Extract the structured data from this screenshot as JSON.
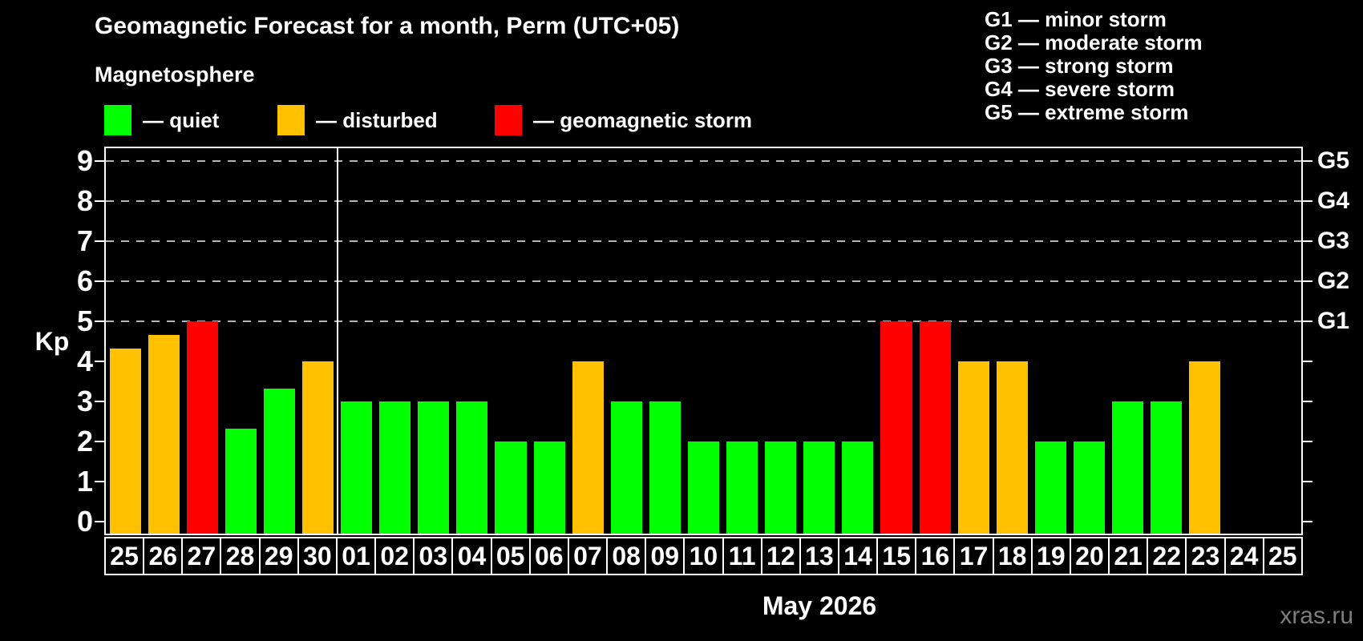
{
  "title": "Geomagnetic Forecast for a month, Perm (UTC+05)",
  "subtitle": "Magnetosphere",
  "legend": {
    "items": [
      {
        "key": "quiet",
        "label": "— quiet",
        "color": "#00ff00"
      },
      {
        "key": "disturbed",
        "label": "— disturbed",
        "color": "#ffc000"
      },
      {
        "key": "storm",
        "label": "— geomagnetic storm",
        "color": "#ff0000"
      }
    ]
  },
  "storm_legend": {
    "lines": [
      "G1 — minor storm",
      "G2 — moderate storm",
      "G3 — strong storm",
      "G4 — severe storm",
      "G5 — extreme storm"
    ]
  },
  "watermark": "xras.ru",
  "chart_data": {
    "type": "bar",
    "title": "Geomagnetic Forecast for a month, Perm (UTC+05)",
    "ylabel": "Kp",
    "xlabel": "May 2026",
    "ylim": [
      0,
      9
    ],
    "yticks": [
      0,
      1,
      2,
      3,
      4,
      5,
      6,
      7,
      8,
      9
    ],
    "gridlines_at": [
      5,
      6,
      7,
      8,
      9
    ],
    "grid": "dashed, storm levels only",
    "right_axis_labels": [
      {
        "value": 5,
        "label": "G1"
      },
      {
        "value": 6,
        "label": "G2"
      },
      {
        "value": 7,
        "label": "G3"
      },
      {
        "value": 8,
        "label": "G4"
      },
      {
        "value": 9,
        "label": "G5"
      }
    ],
    "month_separator_after_index": 5,
    "categories": [
      "25",
      "26",
      "27",
      "28",
      "29",
      "30",
      "01",
      "02",
      "03",
      "04",
      "05",
      "06",
      "07",
      "08",
      "09",
      "10",
      "11",
      "12",
      "13",
      "14",
      "15",
      "16",
      "17",
      "18",
      "19",
      "20",
      "21",
      "22",
      "23",
      "24",
      "25"
    ],
    "values": [
      4.33,
      4.67,
      5,
      2.33,
      3.33,
      4,
      3,
      3,
      3,
      3,
      2,
      2,
      4,
      3,
      3,
      2,
      2,
      2,
      2,
      2,
      5,
      5,
      4,
      4,
      2,
      2,
      3,
      3,
      4,
      null,
      null
    ],
    "statuses": [
      "disturbed",
      "disturbed",
      "storm",
      "quiet",
      "quiet",
      "disturbed",
      "quiet",
      "quiet",
      "quiet",
      "quiet",
      "quiet",
      "quiet",
      "disturbed",
      "quiet",
      "quiet",
      "quiet",
      "quiet",
      "quiet",
      "quiet",
      "quiet",
      "storm",
      "storm",
      "disturbed",
      "disturbed",
      "quiet",
      "quiet",
      "quiet",
      "quiet",
      "disturbed",
      null,
      null
    ],
    "colors": {
      "quiet": "#00ff00",
      "disturbed": "#ffc000",
      "storm": "#ff0000"
    },
    "background": "#000000",
    "axis_color": "#ffffff",
    "grid_color": "#b4b4b4"
  }
}
